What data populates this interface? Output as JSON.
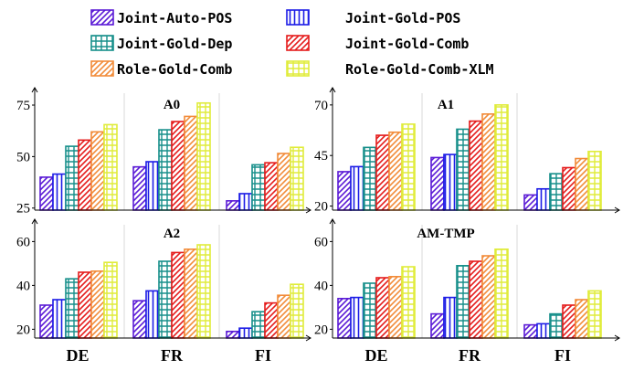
{
  "chart_data": {
    "type": "bar",
    "legend": {
      "placement": "top",
      "entries": [
        {
          "name": "Joint-Auto-POS",
          "color": "#5b1bd6",
          "pattern": "diag"
        },
        {
          "name": "Joint-Gold-POS",
          "color": "#1c1ce6",
          "pattern": "vert"
        },
        {
          "name": "Joint-Gold-Dep",
          "color": "#168f8a",
          "pattern": "grid"
        },
        {
          "name": "Joint-Gold-Comb",
          "color": "#e51c1c",
          "pattern": "diag"
        },
        {
          "name": "Role-Gold-Comb",
          "color": "#f28c3a",
          "pattern": "diag"
        },
        {
          "name": "Role-Gold-Comb-XLM",
          "color": "#e0ec3a",
          "pattern": "grid"
        }
      ]
    },
    "categories": [
      "DE",
      "FR",
      "FI"
    ],
    "panels": [
      {
        "title": "A0",
        "ylim": [
          24,
          79
        ],
        "yticks": [
          25,
          50,
          75
        ],
        "series": [
          {
            "name": "Joint-Auto-POS",
            "values": [
              40,
              45,
              28.5
            ]
          },
          {
            "name": "Joint-Gold-POS",
            "values": [
              41.5,
              47.5,
              32
            ]
          },
          {
            "name": "Joint-Gold-Dep",
            "values": [
              55,
              63,
              46
            ]
          },
          {
            "name": "Joint-Gold-Comb",
            "values": [
              58,
              67,
              47
            ]
          },
          {
            "name": "Role-Gold-Comb",
            "values": [
              62,
              69.5,
              51.5
            ]
          },
          {
            "name": "Role-Gold-Comb-XLM",
            "values": [
              65.5,
              76,
              54.5
            ]
          }
        ]
      },
      {
        "title": "A1",
        "ylim": [
          18,
          74
        ],
        "yticks": [
          20,
          45,
          70
        ],
        "series": [
          {
            "name": "Joint-Auto-POS",
            "values": [
              37,
              44,
              25.5
            ]
          },
          {
            "name": "Joint-Gold-POS",
            "values": [
              39.5,
              45.5,
              28.5
            ]
          },
          {
            "name": "Joint-Gold-Dep",
            "values": [
              49,
              58,
              36
            ]
          },
          {
            "name": "Joint-Gold-Comb",
            "values": [
              55,
              62,
              39
            ]
          },
          {
            "name": "Role-Gold-Comb",
            "values": [
              56.5,
              65.5,
              43.5
            ]
          },
          {
            "name": "Role-Gold-Comb-XLM",
            "values": [
              60.5,
              70,
              47
            ]
          }
        ]
      },
      {
        "title": "A2",
        "ylim": [
          16,
          66
        ],
        "yticks": [
          20,
          40,
          60
        ],
        "series": [
          {
            "name": "Joint-Auto-POS",
            "values": [
              31,
              33,
              19
            ]
          },
          {
            "name": "Joint-Gold-POS",
            "values": [
              33.5,
              37.5,
              20.5
            ]
          },
          {
            "name": "Joint-Gold-Dep",
            "values": [
              43,
              51,
              28
            ]
          },
          {
            "name": "Joint-Gold-Comb",
            "values": [
              46,
              55,
              32
            ]
          },
          {
            "name": "Role-Gold-Comb",
            "values": [
              46.5,
              56.5,
              35.5
            ]
          },
          {
            "name": "Role-Gold-Comb-XLM",
            "values": [
              50.5,
              58.5,
              40.5
            ]
          }
        ]
      },
      {
        "title": "AM-TMP",
        "ylim": [
          16,
          66
        ],
        "yticks": [
          20,
          40,
          60
        ],
        "series": [
          {
            "name": "Joint-Auto-POS",
            "values": [
              34,
              27,
              22
            ]
          },
          {
            "name": "Joint-Gold-POS",
            "values": [
              34.5,
              34.5,
              22.5
            ]
          },
          {
            "name": "Joint-Gold-Dep",
            "values": [
              41,
              49,
              27
            ]
          },
          {
            "name": "Joint-Gold-Comb",
            "values": [
              43.5,
              51,
              31
            ]
          },
          {
            "name": "Role-Gold-Comb",
            "values": [
              44,
              53.5,
              33.5
            ]
          },
          {
            "name": "Role-Gold-Comb-XLM",
            "values": [
              48.5,
              56.5,
              37.5
            ]
          }
        ]
      }
    ]
  }
}
